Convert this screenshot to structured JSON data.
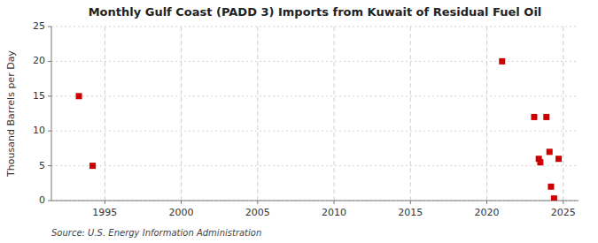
{
  "chart_data": {
    "type": "scatter",
    "title": "Monthly Gulf Coast (PADD 3) Imports from Kuwait of Residual Fuel Oil",
    "ylabel": "Thousand Barrels per Day",
    "source": "Source: U.S. Energy Information Administration",
    "x": [
      1993.3,
      1994.2,
      2021.0,
      2023.1,
      2023.4,
      2023.5,
      2023.9,
      2024.1,
      2024.2,
      2024.4,
      2024.7
    ],
    "values": [
      15,
      5,
      20,
      12,
      6,
      5.5,
      12,
      7,
      2,
      0.3,
      6
    ],
    "color": "#cc0000",
    "marker": "square",
    "xlim": [
      1991.5,
      2026
    ],
    "ylim": [
      0,
      25
    ],
    "xticks": [
      1995,
      2000,
      2005,
      2010,
      2015,
      2020,
      2025
    ],
    "yticks": [
      0,
      5,
      10,
      15,
      20,
      25
    ],
    "grid": true
  }
}
